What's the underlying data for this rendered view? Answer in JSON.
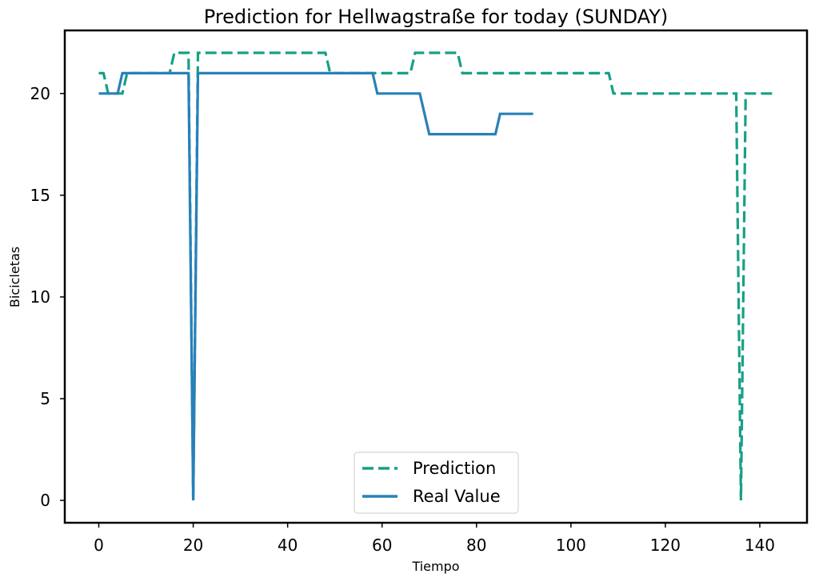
{
  "chart_data": {
    "type": "line",
    "title": "Prediction for Hellwagstraße for today (SUNDAY)",
    "xlabel": "Tiempo",
    "ylabel": "Bicicletas",
    "xlim": [
      -7.2,
      150
    ],
    "ylim": [
      -1.1,
      23.1
    ],
    "xticks": [
      0,
      20,
      40,
      60,
      80,
      100,
      120,
      140
    ],
    "yticks": [
      0,
      5,
      10,
      15,
      20
    ],
    "grid": false,
    "legend_position": "lower-center",
    "series": [
      {
        "name": "Prediction",
        "color": "#16a085",
        "style": "dashed",
        "x": [
          0,
          1,
          2,
          5,
          6,
          15,
          16,
          19,
          20,
          21,
          48,
          49,
          66,
          67,
          76,
          77,
          108,
          109,
          135,
          136,
          137,
          143
        ],
        "y": [
          21,
          21,
          20,
          20,
          21,
          21,
          22,
          22,
          0,
          22,
          22,
          21,
          21,
          22,
          22,
          21,
          21,
          20,
          20,
          0,
          20,
          20
        ]
      },
      {
        "name": "Real Value",
        "color": "#2980b9",
        "style": "solid",
        "x": [
          0,
          4,
          5,
          19,
          20,
          21,
          58,
          59,
          68,
          70,
          84,
          85,
          92
        ],
        "y": [
          20,
          20,
          21,
          21,
          0,
          21,
          21,
          20,
          20,
          18,
          18,
          19,
          19
        ]
      }
    ]
  }
}
